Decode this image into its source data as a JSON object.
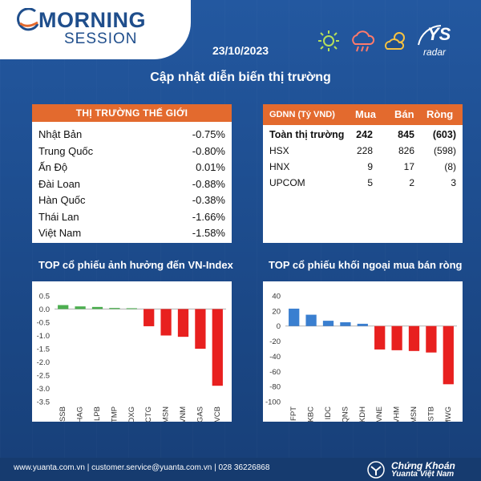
{
  "header": {
    "brand_title": "MORNING",
    "brand_subtitle": "SESSION",
    "date": "23/10/2023",
    "page_title": "Cập nhật diễn biến thị trường",
    "ys_logo": "YS",
    "ys_sub": "radar",
    "weather_icons": [
      "sun-icon",
      "rain-cloud-icon",
      "partly-cloudy-icon"
    ]
  },
  "world_market": {
    "title": "THỊ TRƯỜNG THẾ GIỚI",
    "rows": [
      {
        "name": "Nhật Bản",
        "value": "-0.75%"
      },
      {
        "name": "Trung Quốc",
        "value": "-0.80%"
      },
      {
        "name": "Ấn Độ",
        "value": "0.01%"
      },
      {
        "name": "Đài Loan",
        "value": "-0.88%"
      },
      {
        "name": "Hàn Quốc",
        "value": "-0.38%"
      },
      {
        "name": "Thái Lan",
        "value": "-1.66%"
      },
      {
        "name": "Việt Nam",
        "value": "-1.58%"
      }
    ]
  },
  "gdnn": {
    "headers": {
      "label": "GDNN (Tỷ VND)",
      "buy": "Mua",
      "sell": "Bán",
      "net": "Ròng"
    },
    "rows": [
      {
        "label": "Toàn thị trường",
        "buy": "242",
        "sell": "845",
        "net": "(603)",
        "bold": true
      },
      {
        "label": "HSX",
        "buy": "228",
        "sell": "826",
        "net": "(598)"
      },
      {
        "label": "HNX",
        "buy": "9",
        "sell": "17",
        "net": "(8)"
      },
      {
        "label": "UPCOM",
        "buy": "5",
        "sell": "2",
        "net": "3"
      }
    ]
  },
  "chart_data": [
    {
      "type": "bar",
      "title": "TOP cổ phiếu ảnh hưởng đến VN-Index",
      "categories": [
        "SSB",
        "HAG",
        "LPB",
        "TMP",
        "DXG",
        "CTG",
        "MSN",
        "VNM",
        "GAS",
        "VCB"
      ],
      "values": [
        0.15,
        0.1,
        0.08,
        0.04,
        0.03,
        -0.65,
        -1.0,
        -1.05,
        -1.5,
        -2.9
      ],
      "ylim": [
        -3.5,
        0.5
      ],
      "yticks": [
        0.5,
        0.0,
        -0.5,
        -1.0,
        -1.5,
        -2.0,
        -2.5,
        -3.0,
        -3.5
      ],
      "ytick_labels": [
        "0.5",
        "0.0",
        "-0.5",
        "-1.0",
        "-1.5",
        "-2.0",
        "-2.5",
        "-3.0",
        "-3.5"
      ],
      "colors": {
        "positive": "#4caf50",
        "negative": "#e8201f"
      }
    },
    {
      "type": "bar",
      "title": "TOP cổ phiếu khối ngoại mua bán ròng",
      "categories": [
        "FPT",
        "KBC",
        "IDC",
        "QNS",
        "KDH",
        "VNE",
        "VHM",
        "MSN",
        "STB",
        "MWG"
      ],
      "values": [
        23,
        15,
        7,
        5,
        3,
        -31,
        -32,
        -33,
        -35,
        -77
      ],
      "ylim": [
        -100,
        40
      ],
      "yticks": [
        40,
        20,
        0,
        -20,
        -40,
        -60,
        -80,
        -100
      ],
      "ytick_labels": [
        "40",
        "20",
        "0",
        "-20",
        "-40",
        "-60",
        "-80",
        "-100"
      ],
      "colors": {
        "positive": "#3a7fd0",
        "negative": "#e8201f"
      }
    }
  ],
  "footer": {
    "contact": "www.yuanta.com.vn  |  customer.service@yuanta.com.vn  |  028 36226868",
    "brand_line1": "Chứng Khoán",
    "brand_line2": "Yuanta Việt Nam"
  },
  "colors": {
    "accent": "#e36a2e",
    "background": "#1f4e8c"
  }
}
